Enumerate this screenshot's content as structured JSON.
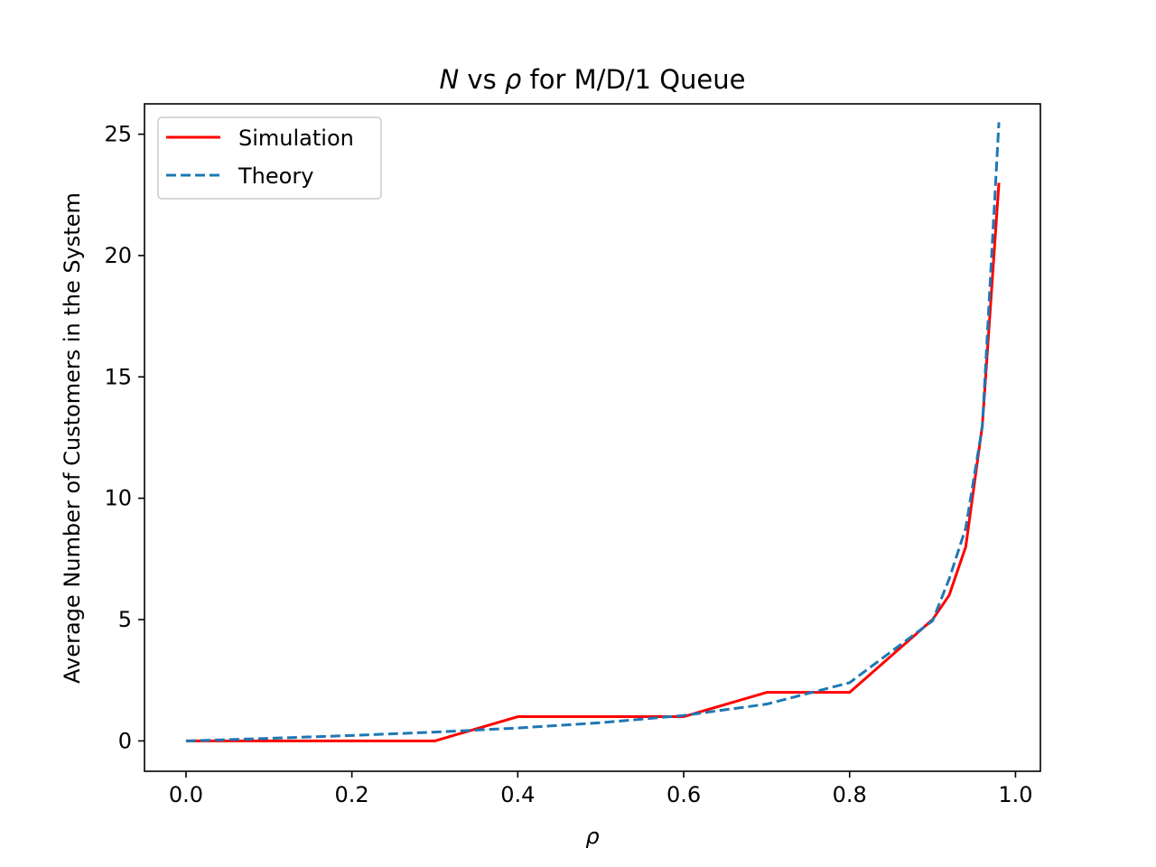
{
  "chart_data": {
    "type": "line",
    "title_prefix": "N",
    "title_middle": " vs ",
    "title_symbol": "ρ",
    "title_suffix": " for M/D/1 Queue",
    "xlabel": "ρ",
    "ylabel": "Average Number of Customers in the System",
    "xlim": [
      -0.05,
      1.03
    ],
    "ylim": [
      -1.25,
      26.25
    ],
    "xticks": [
      0.0,
      0.2,
      0.4,
      0.6,
      0.8,
      1.0
    ],
    "xtick_labels": [
      "0.0",
      "0.2",
      "0.4",
      "0.6",
      "0.8",
      "1.0"
    ],
    "yticks": [
      0,
      5,
      10,
      15,
      20,
      25
    ],
    "ytick_labels": [
      "0",
      "5",
      "10",
      "15",
      "20",
      "25"
    ],
    "grid": false,
    "legend_position": "upper-left",
    "x": [
      0.0,
      0.1,
      0.2,
      0.3,
      0.4,
      0.5,
      0.6,
      0.7,
      0.8,
      0.9,
      0.92,
      0.94,
      0.96,
      0.98
    ],
    "series": [
      {
        "name": "Simulation",
        "color": "#ff0000",
        "style": "solid",
        "values": [
          0,
          0,
          0,
          0,
          1,
          1,
          1,
          2,
          2,
          5,
          6,
          8,
          13,
          23
        ]
      },
      {
        "name": "Theory",
        "color": "#1f77b4",
        "style": "dashed",
        "values": [
          0.0,
          0.106,
          0.225,
          0.364,
          0.533,
          0.75,
          1.05,
          1.517,
          2.4,
          4.95,
          6.67,
          8.77,
          12.96,
          25.49
        ]
      }
    ]
  }
}
